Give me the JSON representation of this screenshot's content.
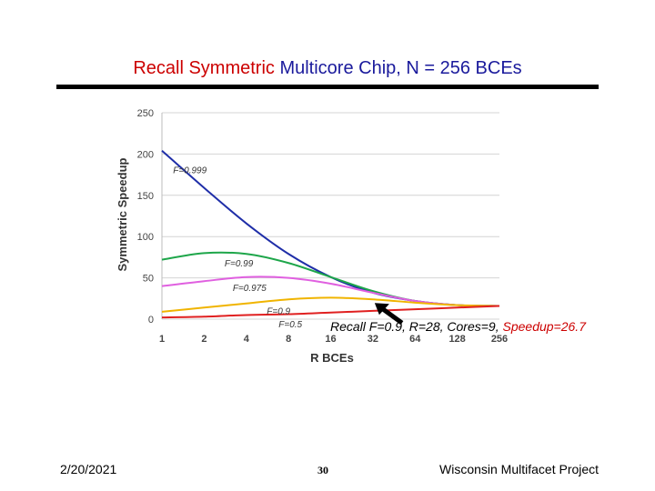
{
  "slide": {
    "title_part1": "Recall Symmetric ",
    "title_part2": "Multicore Chip, N = 256 BCEs",
    "footer_date": "2/20/2021",
    "footer_page": "30",
    "footer_project": "Wisconsin Multifacet Project"
  },
  "annotation": {
    "text": "Recall F=0.9,  R=28, Cores=9, ",
    "highlight": "Speedup=26.7",
    "highlight_color": "#cc0000"
  },
  "chart_data": {
    "type": "line",
    "xlabel": "R BCEs",
    "ylabel": "Symmetric Speedup",
    "x_scale": "log2",
    "x": [
      1,
      2,
      4,
      8,
      16,
      32,
      64,
      128,
      256
    ],
    "xticks": [
      "1",
      "2",
      "4",
      "8",
      "16",
      "32",
      "64",
      "128",
      "256"
    ],
    "yticks": [
      0,
      50,
      100,
      150,
      200,
      250
    ],
    "ylim": [
      0,
      250
    ],
    "grid": true,
    "series": [
      {
        "name": "F=0.999",
        "color": "#1f2ea8",
        "values": [
          204,
          159,
          116,
          79,
          51,
          32,
          22,
          17,
          16
        ]
      },
      {
        "name": "F=0.99",
        "color": "#1ea64a",
        "values": [
          72,
          80,
          79,
          68,
          51,
          34,
          22,
          17,
          16
        ]
      },
      {
        "name": "F=0.975",
        "color": "#e060e0",
        "values": [
          40,
          46,
          51,
          50,
          43,
          32,
          22,
          17,
          16
        ]
      },
      {
        "name": "F=0.9",
        "color": "#f0b400",
        "values": [
          9,
          14,
          19,
          24,
          26,
          24,
          20,
          17,
          16
        ]
      },
      {
        "name": "F=0.5",
        "color": "#e02020",
        "values": [
          2,
          3,
          5,
          6,
          8,
          10,
          12,
          14,
          16
        ]
      }
    ],
    "labels": [
      {
        "text": "F=0.999",
        "series": 0,
        "at_x": 1.2
      },
      {
        "text": "F=0.99",
        "series": 1,
        "at_x": 2.8
      },
      {
        "text": "F=0.975",
        "series": 2,
        "at_x": 3.2
      },
      {
        "text": "F=0.9",
        "series": 3,
        "at_x": 5.6
      },
      {
        "text": "F=0.5",
        "series": 4,
        "at_x": 6.8
      }
    ],
    "arrow_target": {
      "x": 32,
      "y": 24
    }
  }
}
